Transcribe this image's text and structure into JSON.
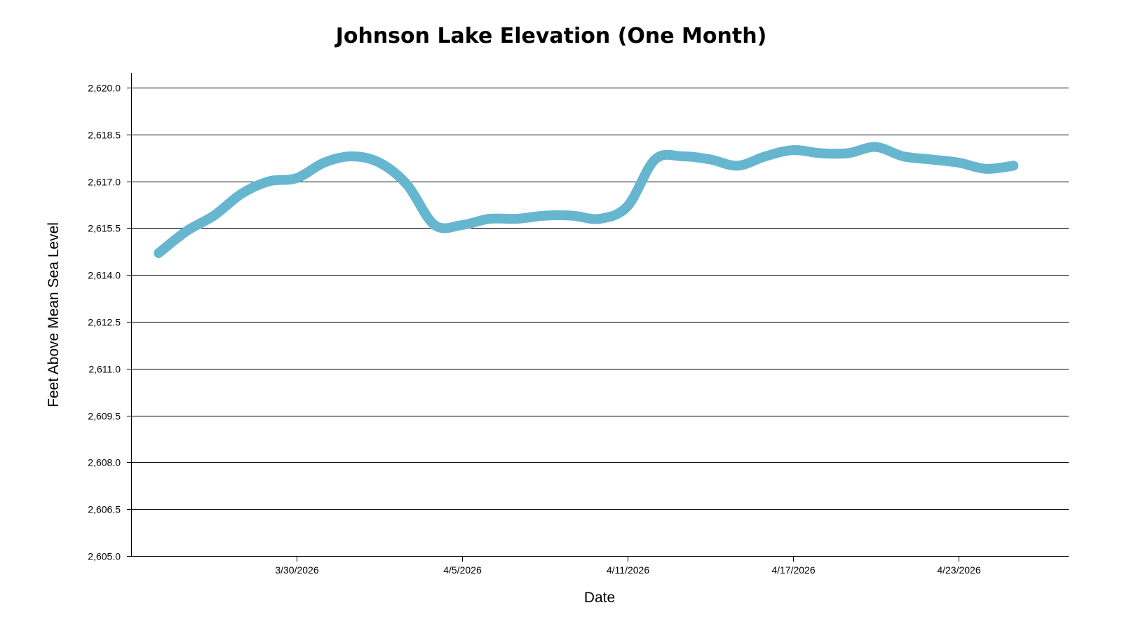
{
  "chart_data": {
    "type": "line",
    "title": "Johnson Lake Elevation (One Month)",
    "xlabel": "Date",
    "ylabel": "Feet Above Mean Sea Level",
    "ylim": [
      2605.0,
      2620.0
    ],
    "yticks": [
      2605.0,
      2606.5,
      2608.0,
      2609.5,
      2611.0,
      2612.5,
      2614.0,
      2615.5,
      2617.0,
      2618.5,
      2620.0
    ],
    "ytick_labels": [
      "2,605.0",
      "2,606.5",
      "2,608.0",
      "2,609.5",
      "2,611.0",
      "2,612.5",
      "2,614.0",
      "2,615.5",
      "2,617.0",
      "2,618.5",
      "2,620.0"
    ],
    "xlim": [
      "2026-03-24",
      "2026-04-27"
    ],
    "xticks": [
      "2026-03-30",
      "2026-04-05",
      "2026-04-11",
      "2026-04-17",
      "2026-04-23"
    ],
    "xtick_labels": [
      "3/30/2026",
      "4/5/2026",
      "4/11/2026",
      "4/17/2026",
      "4/23/2026"
    ],
    "grid": true,
    "line_color": "#67b6d0",
    "series": [
      {
        "x": [
          "2026-03-25",
          "2026-03-26",
          "2026-03-27",
          "2026-03-28",
          "2026-03-29",
          "2026-03-30",
          "2026-03-31",
          "2026-04-01",
          "2026-04-02",
          "2026-04-03",
          "2026-04-04",
          "2026-04-05",
          "2026-04-06",
          "2026-04-07",
          "2026-04-08",
          "2026-04-09",
          "2026-04-10",
          "2026-04-11",
          "2026-04-12",
          "2026-04-13",
          "2026-04-14",
          "2026-04-15",
          "2026-04-16",
          "2026-04-17",
          "2026-04-18",
          "2026-04-19",
          "2026-04-20",
          "2026-04-21",
          "2026-04-22",
          "2026-04-23",
          "2026-04-24",
          "2026-04-25"
        ],
        "values": [
          2614.7,
          2615.4,
          2615.9,
          2616.6,
          2617.0,
          2617.1,
          2617.6,
          2617.8,
          2617.6,
          2616.9,
          2615.6,
          2615.6,
          2615.8,
          2615.8,
          2615.9,
          2615.9,
          2615.8,
          2616.2,
          2617.7,
          2617.8,
          2617.7,
          2617.5,
          2617.8,
          2618.0,
          2617.9,
          2617.9,
          2618.1,
          2617.8,
          2617.7,
          2617.6,
          2617.4,
          2617.5
        ]
      }
    ]
  }
}
